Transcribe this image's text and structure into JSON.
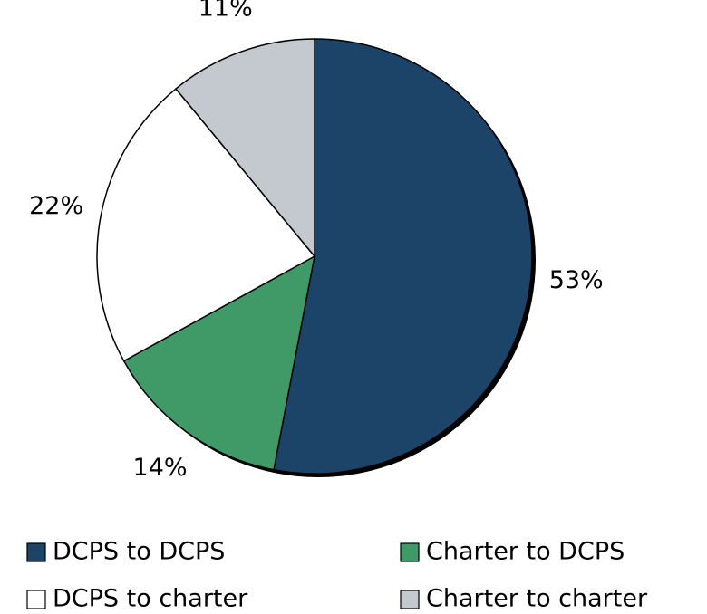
{
  "chart_data": {
    "type": "pie",
    "categories": [
      "DCPS to DCPS",
      "Charter to DCPS",
      "DCPS to charter",
      "Charter to charter"
    ],
    "values": [
      53,
      14,
      22,
      11
    ],
    "value_labels": [
      "53%",
      "14%",
      "22%",
      "11%"
    ],
    "colors": [
      "#1b4468",
      "#3f9a68",
      "#ffffff",
      "#c3c9ce"
    ]
  }
}
